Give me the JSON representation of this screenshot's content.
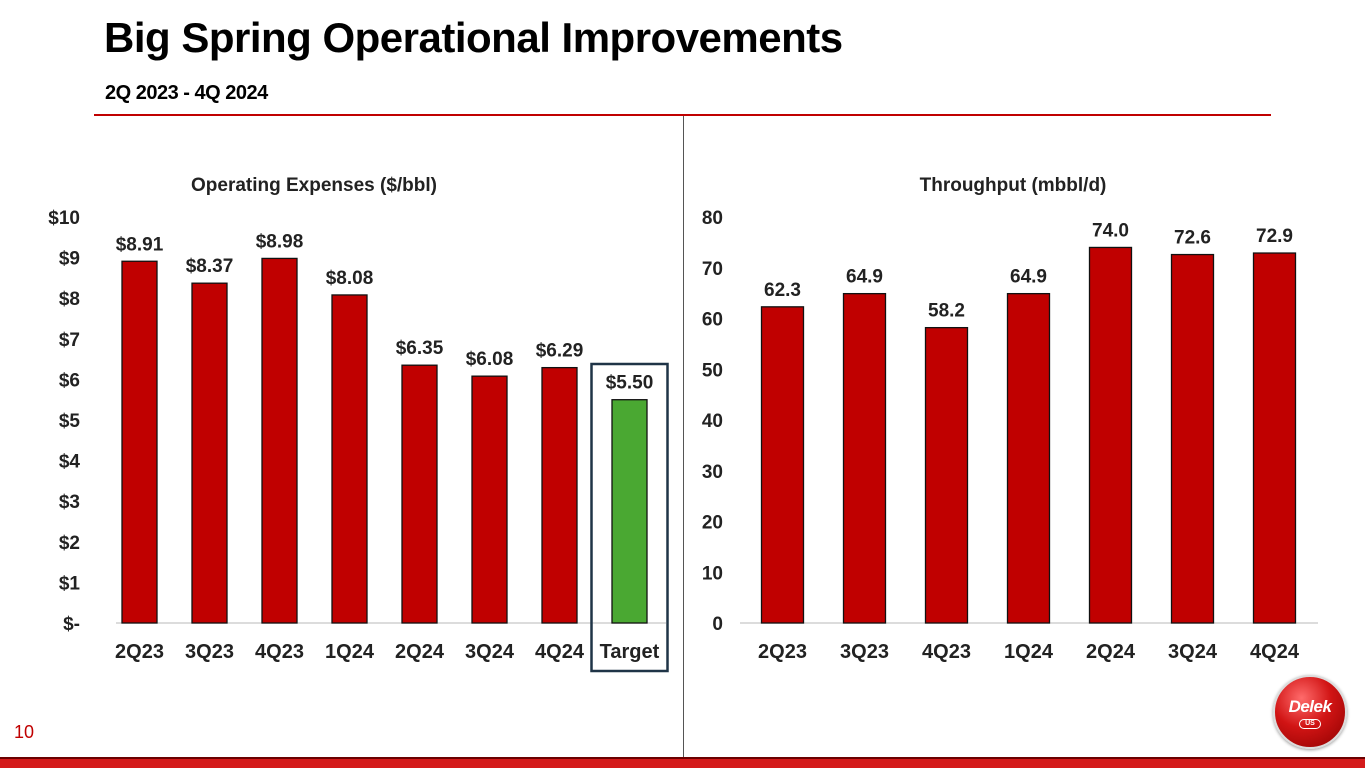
{
  "slide": {
    "title": "Big Spring Operational Improvements",
    "subtitle": "2Q 2023 - 4Q 2024",
    "page_number": "10",
    "logo_text": "Delek",
    "logo_subtext": "US"
  },
  "colors": {
    "accent": "#c00000",
    "bar": "#c00000",
    "target_bar": "#4aa832",
    "target_box": "#1f3447"
  },
  "chart_data": [
    {
      "type": "bar",
      "title": "Operating Expenses ($/bbl)",
      "categories": [
        "2Q23",
        "3Q23",
        "4Q23",
        "1Q24",
        "2Q24",
        "3Q24",
        "4Q24",
        "Target"
      ],
      "values": [
        8.91,
        8.37,
        8.98,
        8.08,
        6.35,
        6.08,
        6.29,
        5.5
      ],
      "data_labels": [
        "$8.91",
        "$8.37",
        "$8.98",
        "$8.08",
        "$6.35",
        "$6.08",
        "$6.29",
        "$5.50"
      ],
      "ylim": [
        0,
        10
      ],
      "yticks": [
        0,
        1,
        2,
        3,
        4,
        5,
        6,
        7,
        8,
        9,
        10
      ],
      "ytick_labels": [
        "$-",
        "$1",
        "$2",
        "$3",
        "$4",
        "$5",
        "$6",
        "$7",
        "$8",
        "$9",
        "$10"
      ],
      "highlight_category": "Target",
      "xlabel": "",
      "ylabel": "",
      "grid": false
    },
    {
      "type": "bar",
      "title": "Throughput (mbbl/d)",
      "categories": [
        "2Q23",
        "3Q23",
        "4Q23",
        "1Q24",
        "2Q24",
        "3Q24",
        "4Q24"
      ],
      "values": [
        62.3,
        64.9,
        58.2,
        64.9,
        74.0,
        72.6,
        72.9
      ],
      "data_labels": [
        "62.3",
        "64.9",
        "58.2",
        "64.9",
        "74.0",
        "72.6",
        "72.9"
      ],
      "ylim": [
        0,
        80
      ],
      "yticks": [
        0,
        10,
        20,
        30,
        40,
        50,
        60,
        70,
        80
      ],
      "ytick_labels": [
        "0",
        "10",
        "20",
        "30",
        "40",
        "50",
        "60",
        "70",
        "80"
      ],
      "xlabel": "",
      "ylabel": "",
      "grid": false
    }
  ]
}
